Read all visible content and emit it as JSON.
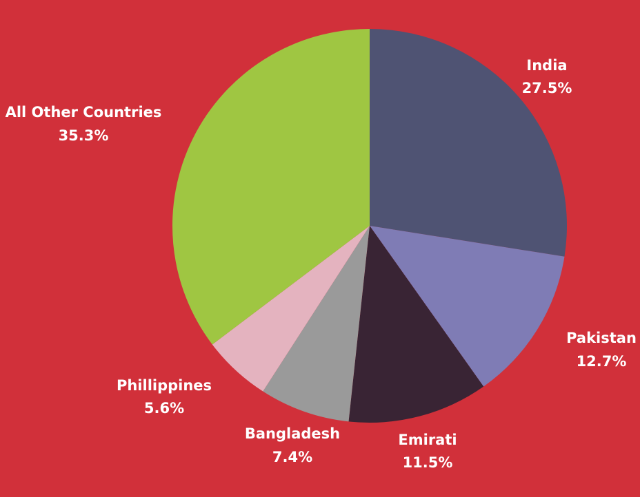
{
  "chart_data": {
    "type": "pie",
    "categories": [
      "India",
      "Pakistan",
      "Emirati",
      "Bangladesh",
      "Phillippines",
      "All Other Countries"
    ],
    "values": [
      27.5,
      12.7,
      11.5,
      7.4,
      5.6,
      35.3
    ],
    "value_labels": [
      "27.5%",
      "12.7%",
      "11.5%",
      "7.4%",
      "5.6%",
      "35.3%"
    ],
    "colors": [
      "#4f5373",
      "#7f7cb5",
      "#392434",
      "#9a9a9a",
      "#e4b3bf",
      "#9fc642"
    ],
    "start_angle": "12 o'clock",
    "direction": "clockwise"
  }
}
